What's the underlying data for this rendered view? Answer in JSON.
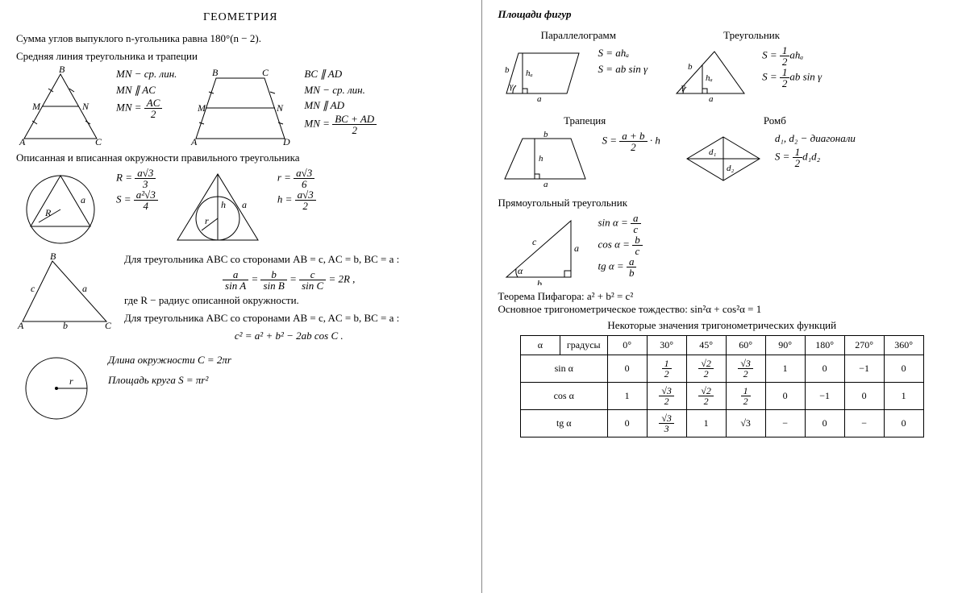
{
  "left": {
    "title": "ГЕОМЕТРИЯ",
    "polygon_sum": "Сумма углов выпуклого n-угольника равна 180°(n − 2).",
    "midline_heading": "Средняя линия треугольника и трапеции",
    "triangle_midline": {
      "line1": "MN − ср. лин.",
      "line2": "MN ∥ AC",
      "line3_pre": "MN = ",
      "line3_num": "AC",
      "line3_den": "2"
    },
    "trapezoid_midline": {
      "line1": "BC ∥ AD",
      "line2": "MN − ср. лин.",
      "line3": "MN ∥ AD",
      "line4_pre": "MN = ",
      "line4_num": "BC + AD",
      "line4_den": "2"
    },
    "circ_heading": "Описанная и вписанная окружности правильного треугольника",
    "circ_out": {
      "R_pre": "R = ",
      "R_num": "a√3",
      "R_den": "3",
      "S_pre": "S = ",
      "S_num": "a²√3",
      "S_den": "4"
    },
    "circ_in": {
      "r_pre": "r = ",
      "r_num": "a√3",
      "r_den": "6",
      "h_pre": "h = ",
      "h_num": "a√3",
      "h_den": "2"
    },
    "sin_rule_intro": "Для треугольника ABC со сторонами AB = c, AC = b, BC = a :",
    "sin_rule": {
      "a_num": "a",
      "a_den": "sin A",
      "b_num": "b",
      "b_den": "sin B",
      "c_num": "c",
      "c_den": "sin C",
      "tail": " = 2R ,"
    },
    "sin_rule_where": "где R − радиус описанной окружности.",
    "cos_rule_intro": "Для треугольника ABC со сторонами AB = c, AC = b, BC = a :",
    "cos_rule": "c² = a² + b² − 2ab cos C .",
    "circle_len": "Длина окружности  C = 2πr",
    "circle_area": "Площадь круга  S = πr²"
  },
  "right": {
    "areas_heading": "Площади фигур",
    "parallelogram_title": "Параллелограмм",
    "parallelogram": {
      "S1": "S = ahₐ",
      "S2": "S = ab sin γ"
    },
    "triangle_title": "Треугольник",
    "triangle": {
      "S1_pre": "S = ",
      "S1_num": "1",
      "S1_den": "2",
      "S1_tail": "ahₐ",
      "S2_pre": "S = ",
      "S2_num": "1",
      "S2_den": "2",
      "S2_tail": "ab sin γ"
    },
    "trapezoid_title": "Трапеция",
    "trapezoid": {
      "S_pre": "S = ",
      "S_num": "a + b",
      "S_den": "2",
      "S_tail": " · h"
    },
    "rhombus_title": "Ромб",
    "rhombus": {
      "line1": "d₁, d₂ − диагонали",
      "S_pre": "S = ",
      "S_num": "1",
      "S_den": "2",
      "S_tail": "d₁d₂"
    },
    "right_tri_heading": "Прямоугольный треугольник",
    "right_tri": {
      "sin_pre": "sin α = ",
      "sin_num": "a",
      "sin_den": "c",
      "cos_pre": "cos α = ",
      "cos_num": "b",
      "cos_den": "c",
      "tg_pre": "tg α = ",
      "tg_num": "a",
      "tg_den": "b"
    },
    "pythagoras": "Теорема Пифагора:  a² + b² = c²",
    "trig_identity": "Основное тригонометрическое тождество:  sin²α + cos²α = 1",
    "trig_table_title": "Некоторые значения тригонометрических функций",
    "trig_table": {
      "head": [
        "α",
        "градусы",
        "0°",
        "30°",
        "45°",
        "60°",
        "90°",
        "180°",
        "270°",
        "360°"
      ],
      "rows": [
        {
          "label": "sin α",
          "cells": [
            "0",
            {
              "num": "1",
              "den": "2"
            },
            {
              "num": "√2",
              "den": "2"
            },
            {
              "num": "√3",
              "den": "2"
            },
            "1",
            "0",
            "−1",
            "0"
          ]
        },
        {
          "label": "cos α",
          "cells": [
            "1",
            {
              "num": "√3",
              "den": "2"
            },
            {
              "num": "√2",
              "den": "2"
            },
            {
              "num": "1",
              "den": "2"
            },
            "0",
            "−1",
            "0",
            "1"
          ]
        },
        {
          "label": "tg α",
          "cells": [
            "0",
            {
              "num": "√3",
              "den": "3"
            },
            "1",
            "√3",
            "−",
            "0",
            "−",
            "0"
          ]
        }
      ]
    }
  },
  "style": {
    "line_color": "#000000",
    "background": "#ffffff",
    "stroke_width": 1,
    "tick_len": 4
  }
}
